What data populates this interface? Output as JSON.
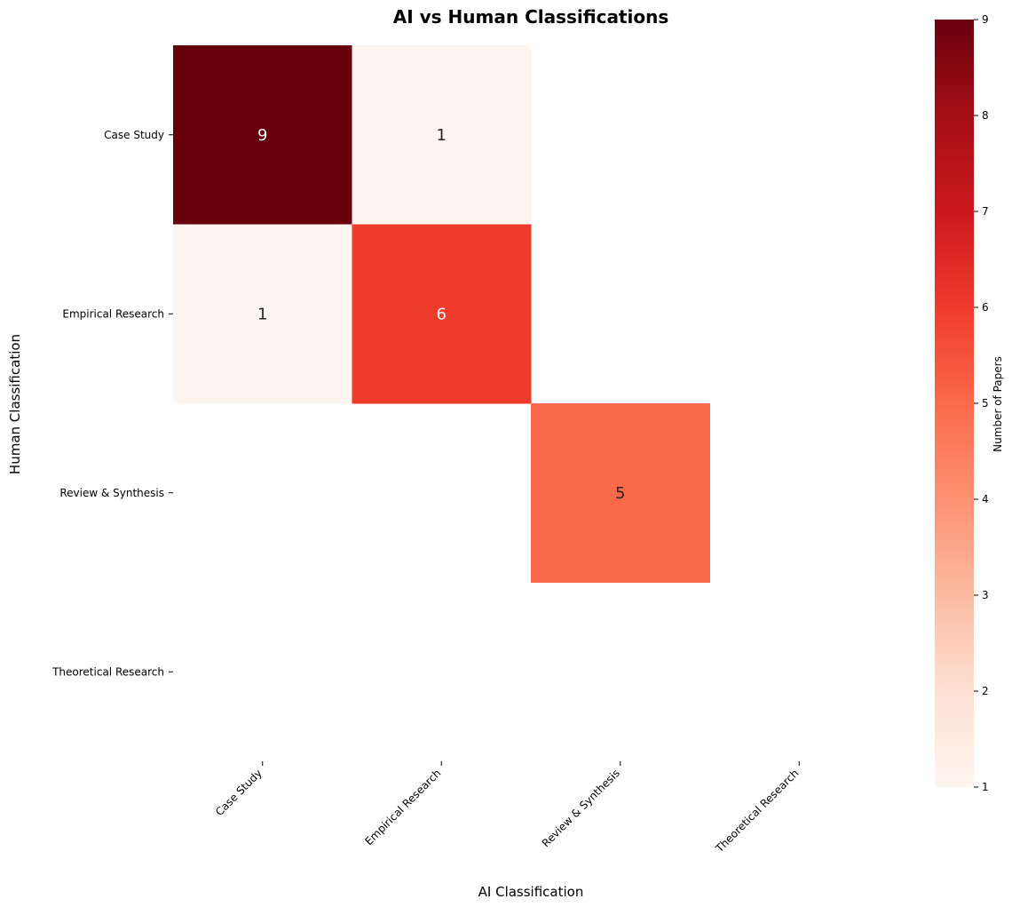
{
  "chart_data": {
    "type": "heatmap",
    "title": "AI vs Human Classifications",
    "xlabel": "AI Classification",
    "ylabel": "Human Classification",
    "x_categories": [
      "Case Study",
      "Empirical Research",
      "Review & Synthesis",
      "Theoretical Research"
    ],
    "y_categories": [
      "Case Study",
      "Empirical Research",
      "Review & Synthesis",
      "Theoretical Research"
    ],
    "values": [
      [
        9,
        1,
        null,
        null
      ],
      [
        1,
        6,
        null,
        null
      ],
      [
        null,
        null,
        5,
        null
      ],
      [
        null,
        null,
        null,
        null
      ]
    ],
    "colorbar": {
      "label": "Number of Papers",
      "range": [
        1,
        9
      ],
      "ticks": [
        1,
        2,
        3,
        4,
        5,
        6,
        7,
        8,
        9
      ],
      "colormap": "Reds"
    },
    "grid": false
  }
}
